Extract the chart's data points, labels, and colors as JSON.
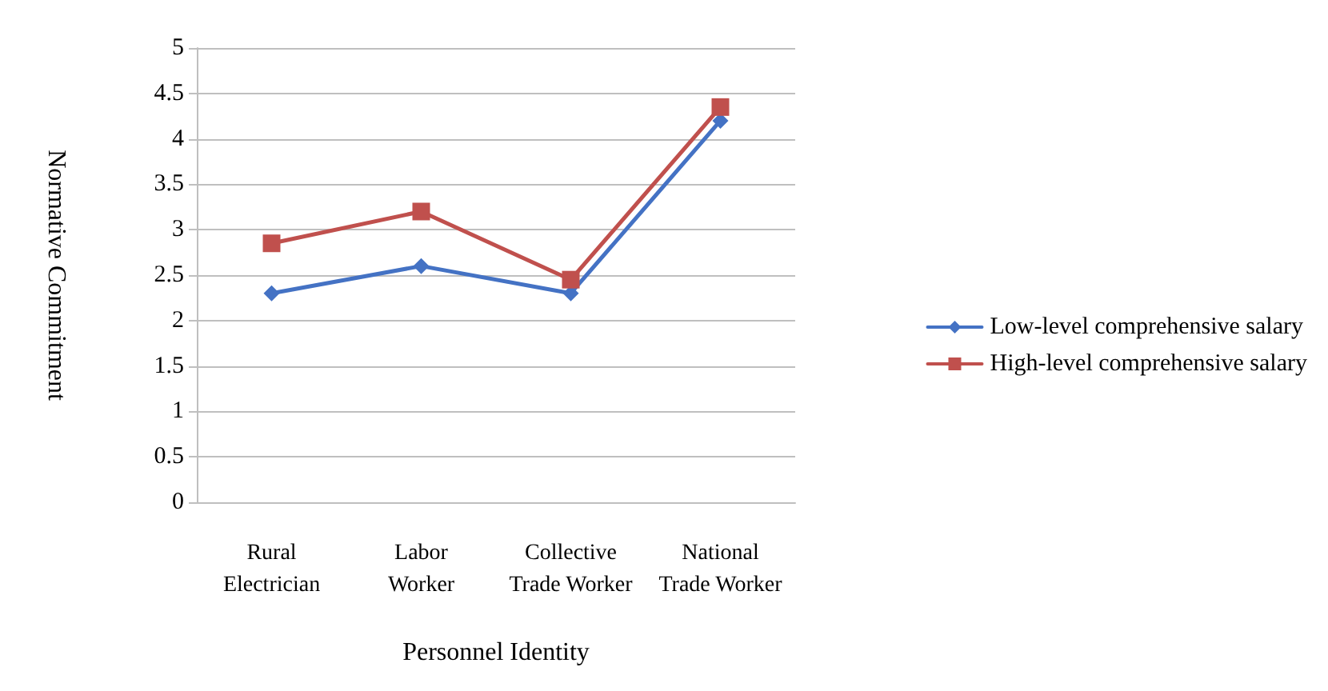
{
  "chart_data": {
    "type": "line",
    "xlabel": "Personnel Identity",
    "ylabel": "Normative Commitment",
    "categories": [
      "Rural Electrician",
      "Labor Worker",
      "Collective Trade Worker",
      "National Trade Worker"
    ],
    "series": [
      {
        "name": "Low-level comprehensive salary",
        "color": "#4472c4",
        "marker": "diamond",
        "values": [
          2.3,
          2.6,
          2.3,
          4.2
        ]
      },
      {
        "name": "High-level comprehensive salary",
        "color": "#c0504d",
        "marker": "square",
        "values": [
          2.85,
          3.2,
          2.45,
          4.35
        ]
      }
    ],
    "ylim": [
      0,
      5
    ],
    "yticks": [
      0,
      0.5,
      1,
      1.5,
      2,
      2.5,
      3,
      3.5,
      4,
      4.5,
      5
    ],
    "grid": "y",
    "legend": "right",
    "line_style": "solid"
  }
}
